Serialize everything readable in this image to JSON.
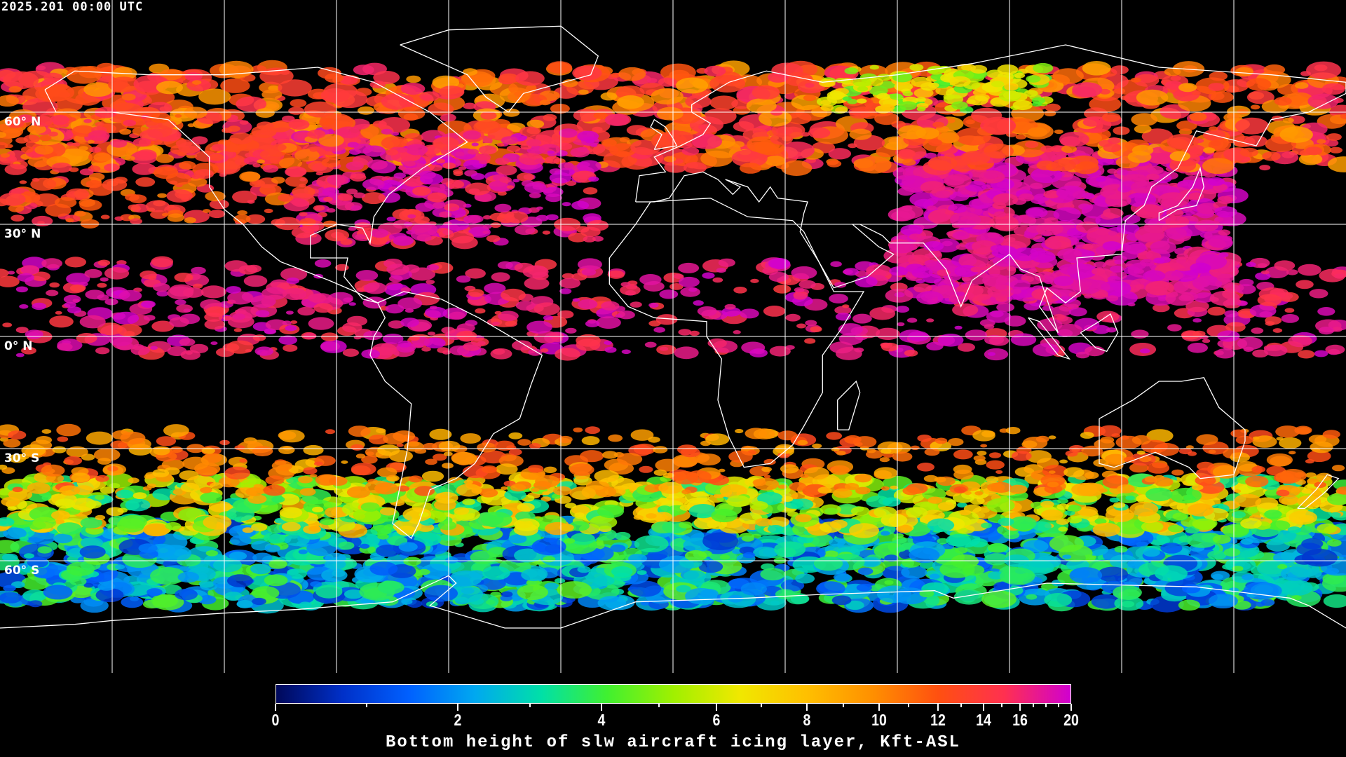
{
  "timestamp": "2025.201 00:00 UTC",
  "map": {
    "projection": "equirectangular",
    "lon_range": [
      -180,
      180
    ],
    "lat_range": [
      -90,
      90
    ],
    "grid_spacing_deg": 30,
    "lat_labels": [
      {
        "lat": 60,
        "label": "60° N"
      },
      {
        "lat": 30,
        "label": "30° N"
      },
      {
        "lat": 0,
        "label": "0° N"
      },
      {
        "lat": -30,
        "label": "30° S"
      },
      {
        "lat": -60,
        "label": "60° S"
      }
    ],
    "background": "#000000",
    "coastline_color": "#ffffff",
    "grid_color": "#ffffff"
  },
  "colorbar": {
    "title": "Bottom height of slw aircraft icing layer, Kft-ASL",
    "range": [
      0,
      20
    ],
    "major_ticks": [
      {
        "value": 0,
        "label": "0"
      },
      {
        "value": 2,
        "label": "2"
      },
      {
        "value": 4,
        "label": "4"
      },
      {
        "value": 6,
        "label": "6"
      },
      {
        "value": 8,
        "label": "8"
      },
      {
        "value": 10,
        "label": "10"
      },
      {
        "value": 12,
        "label": "12"
      },
      {
        "value": 14,
        "label": "14"
      },
      {
        "value": 16,
        "label": "16"
      },
      {
        "value": 20,
        "label": "20"
      }
    ],
    "minor_ticks": [
      1,
      3,
      5,
      7,
      9,
      11,
      13,
      15,
      17,
      18,
      19
    ],
    "colors": [
      "#00085a",
      "#0030c8",
      "#0060ff",
      "#00a8f0",
      "#00e0a8",
      "#40f030",
      "#a0f000",
      "#f0e800",
      "#ffc000",
      "#ff9000",
      "#ff5010",
      "#ff3050",
      "#d000d0"
    ]
  }
}
